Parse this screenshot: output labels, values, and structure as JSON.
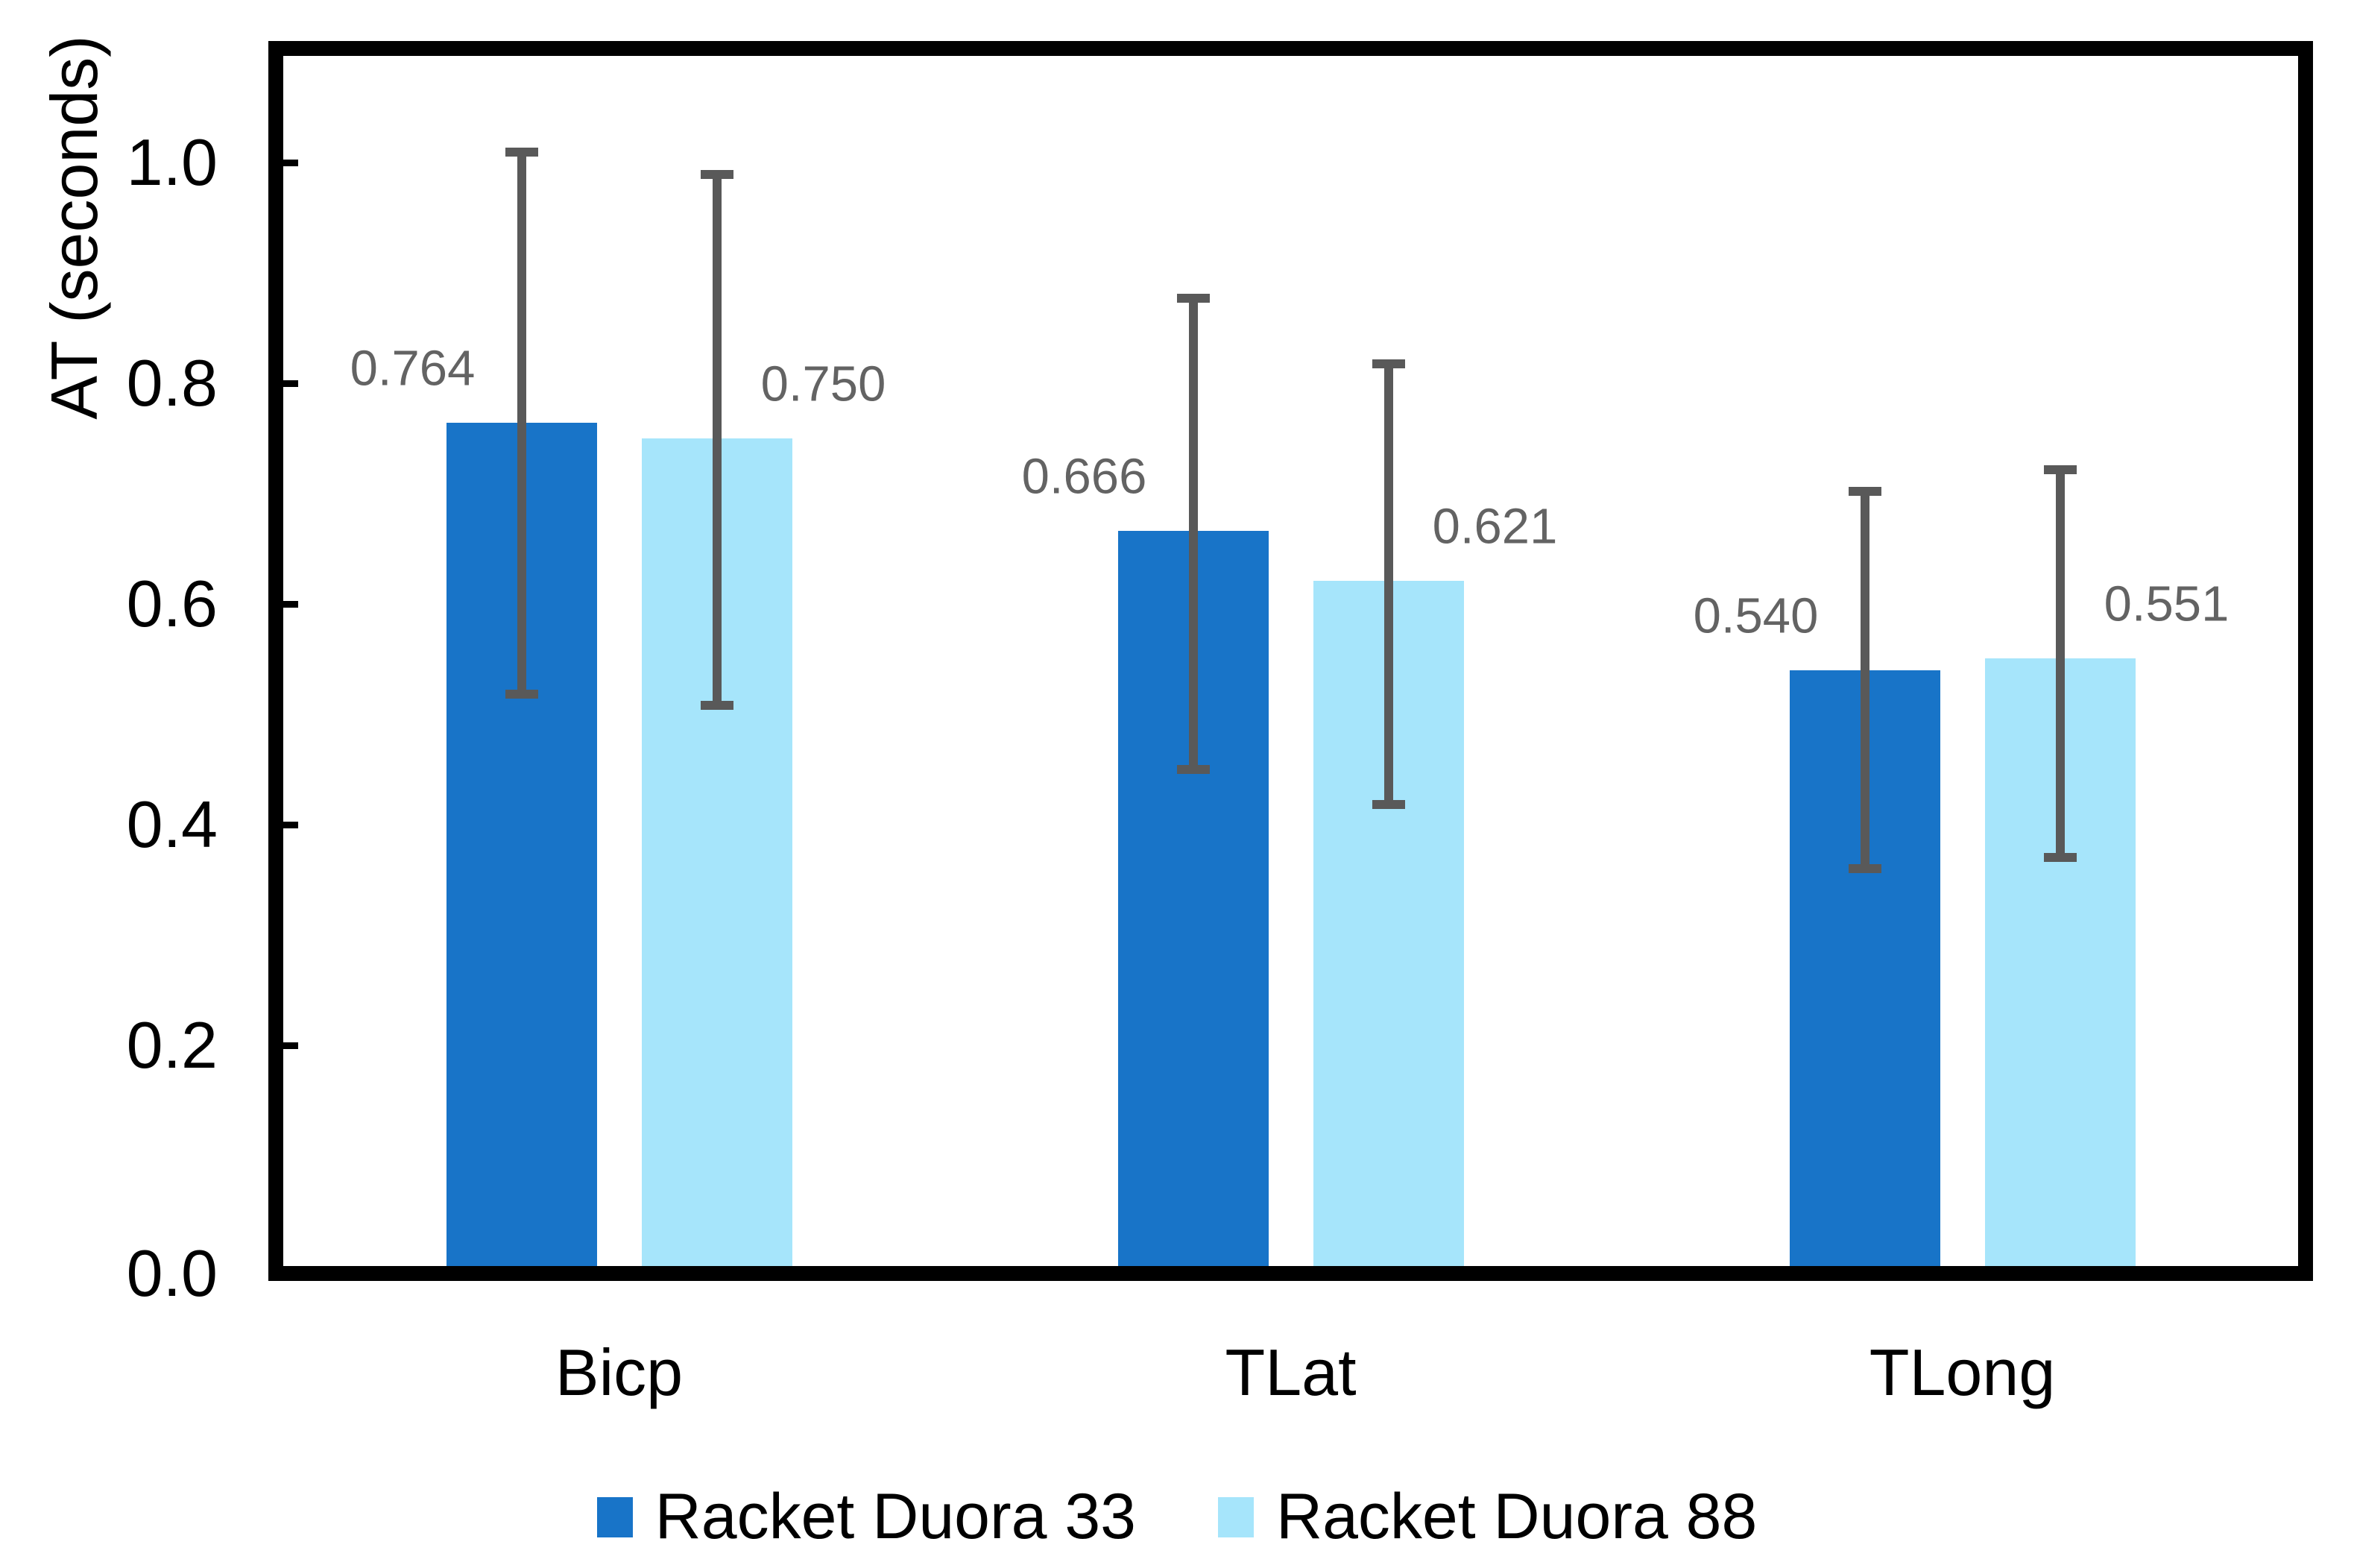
{
  "page": {
    "background": "#ffffff"
  },
  "chart_data": {
    "type": "bar",
    "title": "",
    "xlabel": "",
    "ylabel": "AT (seconds)",
    "categories": [
      "Bicp",
      "TLat",
      "TLong"
    ],
    "series": [
      {
        "name": "Racket Duora 33",
        "color": "#1874C8",
        "values": [
          0.764,
          0.666,
          0.54
        ],
        "data_labels": [
          "0.764",
          "0.666",
          "0.540"
        ],
        "whisker_top": [
          1.01,
          0.878,
          0.703
        ],
        "whisker_bottom": [
          0.518,
          0.45,
          0.36
        ]
      },
      {
        "name": "Racket Duora 88",
        "color": "#A6E5FB",
        "values": [
          0.75,
          0.621,
          0.551
        ],
        "data_labels": [
          "0.750",
          "0.621",
          "0.551"
        ],
        "whisker_top": [
          0.99,
          0.818,
          0.722
        ],
        "whisker_bottom": [
          0.508,
          0.418,
          0.37
        ]
      }
    ],
    "y_ticks": [
      "0.0",
      "0.2",
      "0.4",
      "0.6",
      "0.8",
      "1.0"
    ],
    "y_tick_step": 0.2,
    "ylim": [
      0,
      1.1
    ],
    "grid": false,
    "legend_position": "bottom",
    "plot_border_color": "#000000",
    "error_bar_color": "#595959",
    "data_label_color": "#636363"
  }
}
